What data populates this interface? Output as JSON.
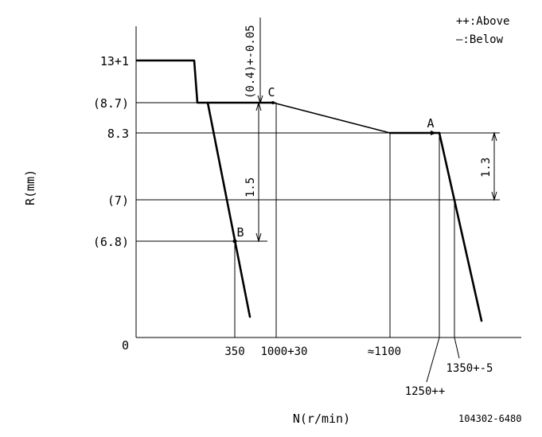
{
  "legend": {
    "above": "++:Above",
    "below": "—:Below"
  },
  "axes": {
    "y_title": "R(mm)",
    "x_title": "N(r/min)",
    "origin": "0"
  },
  "y_labels": {
    "l13": "13+1",
    "l87": "(8.7)",
    "l83": "8.3",
    "l7": "(7)",
    "l68": "(6.8)"
  },
  "x_labels": {
    "n350": "350",
    "n1000": "1000+30",
    "n1100": "≈1100",
    "n1250": "1250++",
    "n1350": "1350+-5"
  },
  "points": {
    "a": "A",
    "b": "B",
    "c": "C"
  },
  "dims": {
    "d04": "(0.4)+-0.05",
    "d15": "1.5",
    "d13": "1.3"
  },
  "code": "104302-6480"
}
